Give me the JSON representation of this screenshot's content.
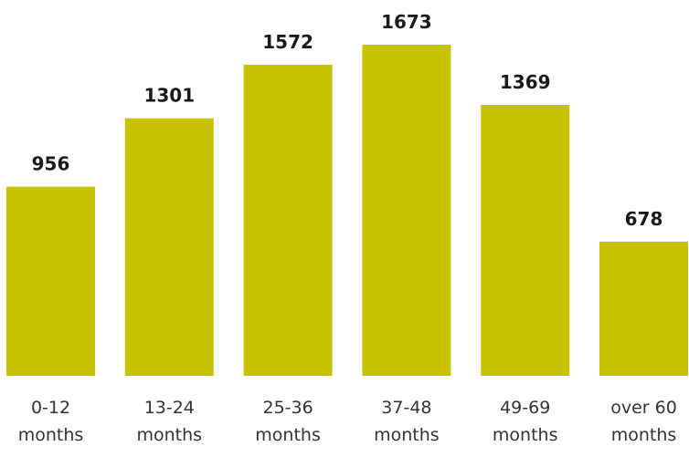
{
  "chart_data": {
    "type": "bar",
    "categories": [
      [
        "0-12",
        "months"
      ],
      [
        "13-24",
        "months"
      ],
      [
        "25-36",
        "months"
      ],
      [
        "37-48",
        "months"
      ],
      [
        "49-69",
        "months"
      ],
      [
        "over 60",
        "months"
      ]
    ],
    "values": [
      956,
      1301,
      1572,
      1673,
      1369,
      678
    ],
    "data_labels": [
      "956",
      "1301",
      "1572",
      "1673",
      "1369",
      "678"
    ],
    "title": "",
    "xlabel": "",
    "ylabel": "",
    "ylim": [
      0,
      1673
    ],
    "grid": false,
    "legend": "none",
    "colors": {
      "bar": "#c8c200",
      "value_text": "#1a1a1a",
      "category_text": "#333333",
      "background": "#ffffff"
    }
  }
}
